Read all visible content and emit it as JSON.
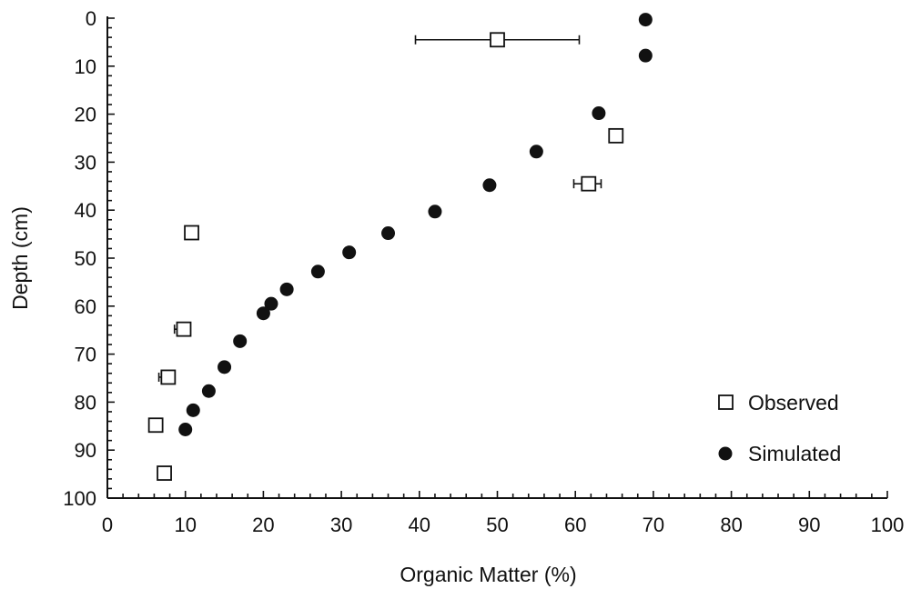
{
  "chart_data": {
    "type": "scatter",
    "xlabel": "Organic Matter (%)",
    "ylabel": "Depth (cm)",
    "xlim": [
      0,
      100
    ],
    "ylim": [
      0,
      100
    ],
    "y_inverted": true,
    "x_ticks": [
      0,
      10,
      20,
      30,
      40,
      50,
      60,
      70,
      80,
      90,
      100
    ],
    "x_tick_labels": [
      "0",
      "10",
      "20",
      "30",
      "40",
      "50",
      "60",
      "70",
      "80",
      "90",
      "100"
    ],
    "y_ticks": [
      0,
      10,
      20,
      30,
      40,
      50,
      60,
      70,
      80,
      90,
      100
    ],
    "y_tick_labels": [
      "0",
      "10",
      "20",
      "30",
      "40",
      "50",
      "60",
      "70",
      "80",
      "90",
      "100"
    ],
    "grid": false,
    "legend_position": "bottom-right",
    "series": [
      {
        "name": "Observed",
        "marker": "open-square",
        "points": [
          {
            "x": 50.0,
            "y": 4.5,
            "xerr": [
              39.5,
              60.5
            ]
          },
          {
            "x": 65.2,
            "y": 24.5
          },
          {
            "x": 61.7,
            "y": 34.5,
            "xerr": [
              59.8,
              63.3
            ]
          },
          {
            "x": 10.8,
            "y": 44.7
          },
          {
            "x": 9.8,
            "y": 64.8,
            "xerr": [
              8.6,
              10.6
            ]
          },
          {
            "x": 7.8,
            "y": 74.8,
            "xerr": [
              6.6,
              8.4
            ]
          },
          {
            "x": 6.2,
            "y": 84.8
          },
          {
            "x": 7.3,
            "y": 94.8
          }
        ]
      },
      {
        "name": "Simulated",
        "marker": "filled-circle",
        "points": [
          {
            "x": 69.0,
            "y": 0.3
          },
          {
            "x": 69.0,
            "y": 7.8
          },
          {
            "x": 63.0,
            "y": 19.8
          },
          {
            "x": 55.0,
            "y": 27.8
          },
          {
            "x": 49.0,
            "y": 34.8
          },
          {
            "x": 42.0,
            "y": 40.3
          },
          {
            "x": 36.0,
            "y": 44.8
          },
          {
            "x": 31.0,
            "y": 48.8
          },
          {
            "x": 27.0,
            "y": 52.8
          },
          {
            "x": 23.0,
            "y": 56.5
          },
          {
            "x": 21.0,
            "y": 59.5
          },
          {
            "x": 20.0,
            "y": 61.5
          },
          {
            "x": 17.0,
            "y": 67.3
          },
          {
            "x": 15.0,
            "y": 72.7
          },
          {
            "x": 13.0,
            "y": 77.7
          },
          {
            "x": 11.0,
            "y": 81.7
          },
          {
            "x": 10.0,
            "y": 85.7
          }
        ]
      }
    ]
  }
}
